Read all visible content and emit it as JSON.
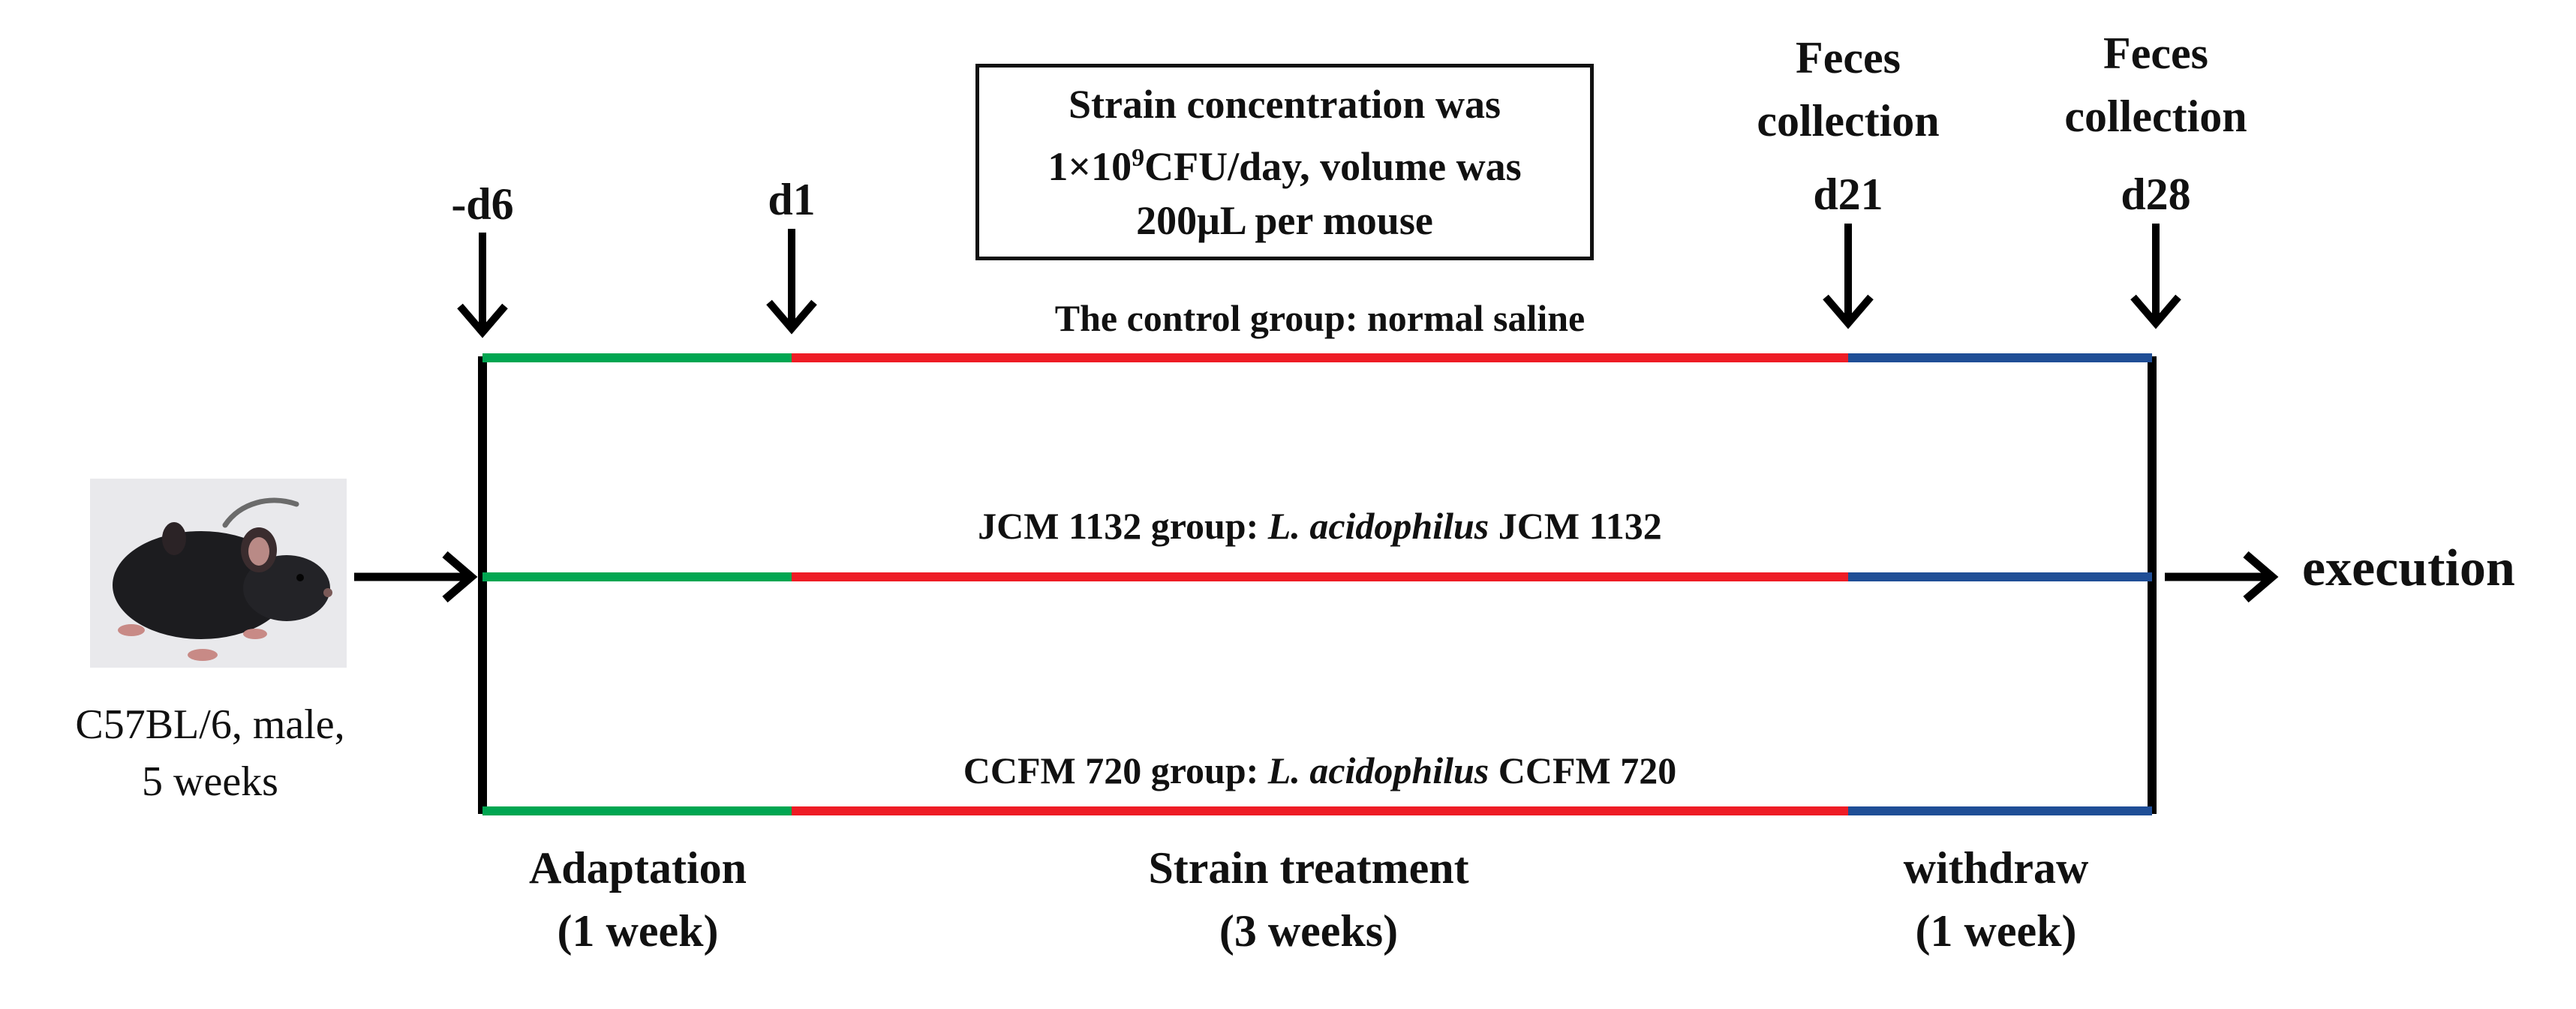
{
  "markers": {
    "d_neg6": "-d6",
    "d1": "d1",
    "d21": "d21",
    "d28": "d28",
    "feces_line1": "Feces",
    "feces_line2": "collection"
  },
  "info_box": {
    "line1": "Strain concentration was",
    "line2_prefix": "1×10",
    "line2_sup": "9",
    "line2_suffix": "CFU/day, volume was",
    "line3": "200μL per mouse"
  },
  "groups": {
    "control": "The control group: normal saline",
    "jcm_prefix": "JCM 1132 group: ",
    "jcm_species": "L. acidophilus",
    "jcm_suffix": " JCM 1132",
    "ccfm_prefix": "CCFM 720 group: ",
    "ccfm_species": "L. acidophilus",
    "ccfm_suffix": " CCFM 720"
  },
  "phases": {
    "adaptation": "Adaptation",
    "adaptation_duration": "(1 week)",
    "treatment": "Strain treatment",
    "treatment_duration": "(3 weeks)",
    "withdraw": "withdraw",
    "withdraw_duration": "(1 week)"
  },
  "mouse": {
    "caption_line1": "C57BL/6,  male,",
    "caption_line2": "5 weeks"
  },
  "execution": "execution",
  "colors": {
    "adaptation": "#00a651",
    "treatment": "#ee1c25",
    "withdraw": "#1f4e96",
    "line": "#000000"
  }
}
